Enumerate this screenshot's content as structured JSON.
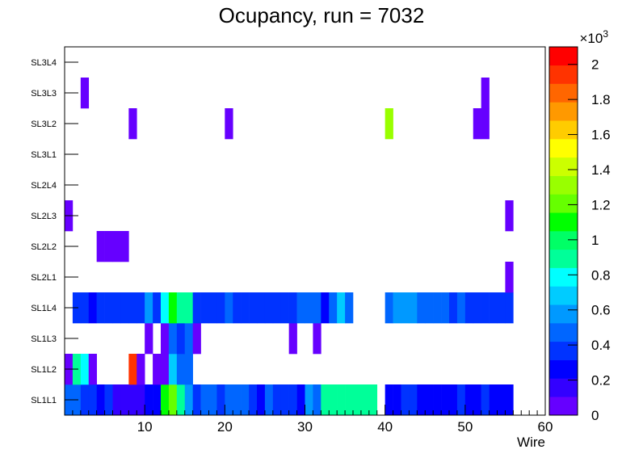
{
  "chart_data": {
    "type": "heatmap",
    "title": "Ocupancy, run = 7032",
    "xlabel": "Wire",
    "ylabel": "",
    "xlim": [
      0,
      60
    ],
    "x_ticks": [
      10,
      20,
      30,
      40,
      50,
      60
    ],
    "layers": [
      "SL1L1",
      "SL1L2",
      "SL1L3",
      "SL1L4",
      "SL2L1",
      "SL2L2",
      "SL2L3",
      "SL2L4",
      "SL3L1",
      "SL3L2",
      "SL3L3",
      "SL3L4"
    ],
    "zlim": [
      0,
      2100
    ],
    "z_multiplier": "×10³",
    "z_ticks": [
      {
        "value": 0,
        "label": "0"
      },
      {
        "value": 200,
        "label": "0.2"
      },
      {
        "value": 400,
        "label": "0.4"
      },
      {
        "value": 600,
        "label": "0.6"
      },
      {
        "value": 800,
        "label": "0.8"
      },
      {
        "value": 1000,
        "label": "1"
      },
      {
        "value": 1200,
        "label": "1.2"
      },
      {
        "value": 1400,
        "label": "1.4"
      },
      {
        "value": 1600,
        "label": "1.6"
      },
      {
        "value": 1800,
        "label": "1.8"
      },
      {
        "value": 2000,
        "label": "2"
      }
    ],
    "palette": [
      "#6600ff",
      "#3300ff",
      "#0000ff",
      "#0033ff",
      "#0066ff",
      "#0099ff",
      "#00ccff",
      "#00ffff",
      "#00ff99",
      "#00ff66",
      "#00ff00",
      "#66ff00",
      "#99ff00",
      "#ccff00",
      "#ffff00",
      "#ffcc00",
      "#ff9900",
      "#ff6600",
      "#ff3300",
      "#ff0000"
    ],
    "cells": {
      "SL1L1": [
        [
          1,
          500
        ],
        [
          2,
          500
        ],
        [
          3,
          400
        ],
        [
          4,
          400
        ],
        [
          5,
          300
        ],
        [
          6,
          400
        ],
        [
          7,
          200
        ],
        [
          8,
          200
        ],
        [
          9,
          200
        ],
        [
          10,
          200
        ],
        [
          11,
          300
        ],
        [
          12,
          300
        ],
        [
          13,
          1100
        ],
        [
          14,
          1200
        ],
        [
          15,
          900
        ],
        [
          16,
          600
        ],
        [
          17,
          400
        ],
        [
          18,
          500
        ],
        [
          19,
          500
        ],
        [
          20,
          400
        ],
        [
          21,
          500
        ],
        [
          22,
          500
        ],
        [
          23,
          500
        ],
        [
          24,
          400
        ],
        [
          25,
          300
        ],
        [
          26,
          500
        ],
        [
          27,
          400
        ],
        [
          28,
          400
        ],
        [
          29,
          400
        ],
        [
          30,
          300
        ],
        [
          31,
          600
        ],
        [
          32,
          500
        ],
        [
          33,
          900
        ],
        [
          34,
          900
        ],
        [
          35,
          900
        ],
        [
          36,
          900
        ],
        [
          37,
          900
        ],
        [
          38,
          900
        ],
        [
          39,
          900
        ],
        [
          41,
          300
        ],
        [
          42,
          300
        ],
        [
          43,
          400
        ],
        [
          44,
          400
        ],
        [
          45,
          300
        ],
        [
          46,
          300
        ],
        [
          47,
          300
        ],
        [
          48,
          300
        ],
        [
          49,
          300
        ],
        [
          50,
          400
        ],
        [
          51,
          300
        ],
        [
          52,
          300
        ],
        [
          53,
          400
        ],
        [
          54,
          300
        ],
        [
          55,
          300
        ],
        [
          56,
          300
        ]
      ],
      "SL1L2": [
        [
          1,
          100
        ],
        [
          2,
          900
        ],
        [
          3,
          800
        ],
        [
          4,
          100
        ],
        [
          9,
          1950
        ],
        [
          10,
          100
        ],
        [
          12,
          100
        ],
        [
          13,
          100
        ],
        [
          14,
          700
        ],
        [
          15,
          500
        ],
        [
          16,
          500
        ]
      ],
      "SL1L3": [
        [
          11,
          100
        ],
        [
          13,
          100
        ],
        [
          14,
          500
        ],
        [
          15,
          400
        ],
        [
          16,
          500
        ],
        [
          17,
          100
        ],
        [
          29,
          100
        ],
        [
          32,
          100
        ]
      ],
      "SL1L4": [
        [
          2,
          400
        ],
        [
          3,
          400
        ],
        [
          4,
          300
        ],
        [
          5,
          400
        ],
        [
          6,
          400
        ],
        [
          7,
          400
        ],
        [
          8,
          400
        ],
        [
          9,
          400
        ],
        [
          10,
          400
        ],
        [
          11,
          600
        ],
        [
          12,
          400
        ],
        [
          13,
          800
        ],
        [
          14,
          1100
        ],
        [
          15,
          900
        ],
        [
          16,
          900
        ],
        [
          17,
          400
        ],
        [
          18,
          400
        ],
        [
          19,
          400
        ],
        [
          20,
          400
        ],
        [
          21,
          500
        ],
        [
          22,
          400
        ],
        [
          23,
          400
        ],
        [
          24,
          400
        ],
        [
          25,
          400
        ],
        [
          26,
          400
        ],
        [
          27,
          400
        ],
        [
          28,
          400
        ],
        [
          29,
          400
        ],
        [
          30,
          500
        ],
        [
          31,
          500
        ],
        [
          32,
          500
        ],
        [
          33,
          300
        ],
        [
          34,
          500
        ],
        [
          35,
          700
        ],
        [
          36,
          500
        ],
        [
          41,
          500
        ],
        [
          42,
          600
        ],
        [
          43,
          600
        ],
        [
          44,
          600
        ],
        [
          45,
          500
        ],
        [
          46,
          500
        ],
        [
          47,
          500
        ],
        [
          48,
          500
        ],
        [
          49,
          400
        ],
        [
          50,
          500
        ],
        [
          51,
          400
        ],
        [
          52,
          400
        ],
        [
          53,
          400
        ],
        [
          54,
          400
        ],
        [
          55,
          400
        ],
        [
          56,
          400
        ]
      ],
      "SL2L1": [
        [
          56,
          100
        ]
      ],
      "SL2L2": [
        [
          5,
          100
        ],
        [
          6,
          100
        ],
        [
          7,
          100
        ],
        [
          8,
          100
        ]
      ],
      "SL2L3": [
        [
          1,
          100
        ],
        [
          56,
          100
        ]
      ],
      "SL2L4": [],
      "SL3L1": [],
      "SL3L2": [
        [
          9,
          100
        ],
        [
          21,
          100
        ],
        [
          41,
          1300
        ],
        [
          52,
          100
        ],
        [
          53,
          100
        ]
      ],
      "SL3L3": [
        [
          3,
          100
        ],
        [
          53,
          100
        ]
      ],
      "SL3L4": []
    }
  }
}
